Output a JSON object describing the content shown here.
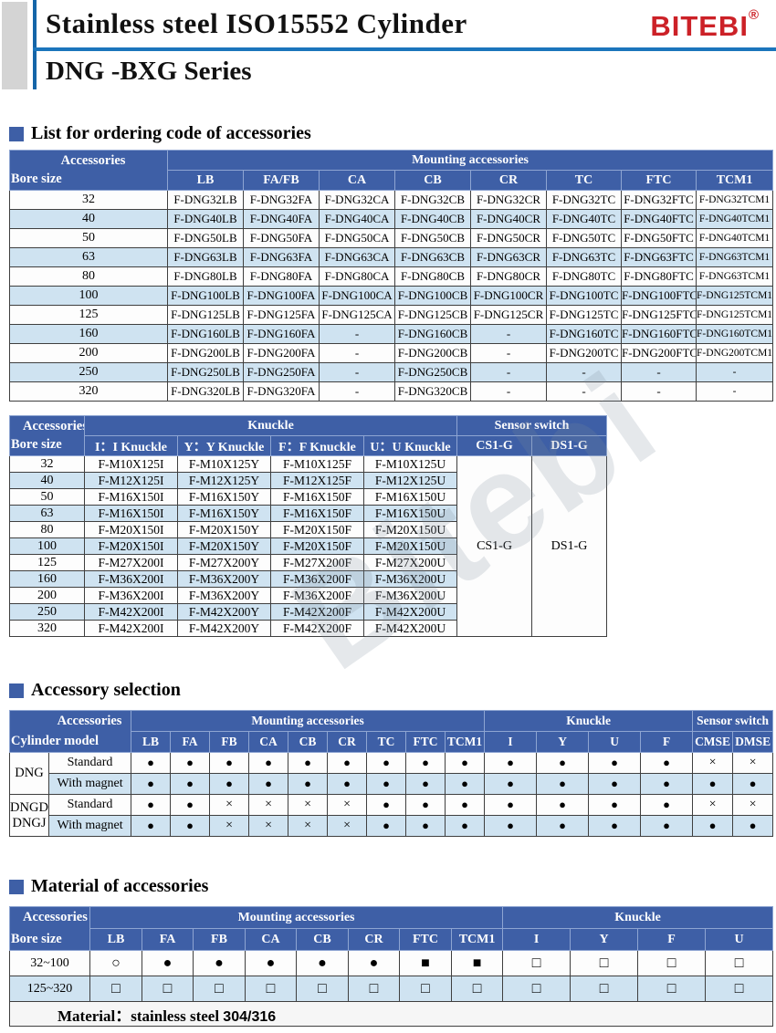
{
  "header": {
    "title": "Stainless steel ISO15552 Cylinder",
    "series": "DNG -BXG Series",
    "brand": "BITEBI",
    "brand_reg": "®"
  },
  "colors": {
    "header_blue": "#3e5fa6",
    "stripe_blue": "#cfe3f1",
    "rule_blue": "#1b75bc",
    "brand_red": "#cc2127"
  },
  "sections": {
    "ordering": "List for ordering code of accessories",
    "selection": "Accessory selection",
    "material": "Material of accessories"
  },
  "table1": {
    "corner": {
      "top": "Accessories",
      "bottom": "Bore size"
    },
    "group_header": "Mounting accessories",
    "columns": [
      "LB",
      "FA/FB",
      "CA",
      "CB",
      "CR",
      "TC",
      "FTC",
      "TCM1"
    ],
    "rows": [
      {
        "bore": "32",
        "cells": [
          "F-DNG32LB",
          "F-DNG32FA",
          "F-DNG32CA",
          "F-DNG32CB",
          "F-DNG32CR",
          "F-DNG32TC",
          "F-DNG32FTC",
          "F-DNG32TCM1"
        ]
      },
      {
        "bore": "40",
        "cells": [
          "F-DNG40LB",
          "F-DNG40FA",
          "F-DNG40CA",
          "F-DNG40CB",
          "F-DNG40CR",
          "F-DNG40TC",
          "F-DNG40FTC",
          "F-DNG40TCM1"
        ]
      },
      {
        "bore": "50",
        "cells": [
          "F-DNG50LB",
          "F-DNG50FA",
          "F-DNG50CA",
          "F-DNG50CB",
          "F-DNG50CR",
          "F-DNG50TC",
          "F-DNG50FTC",
          "F-DNG40TCM1"
        ]
      },
      {
        "bore": "63",
        "cells": [
          "F-DNG63LB",
          "F-DNG63FA",
          "F-DNG63CA",
          "F-DNG63CB",
          "F-DNG63CR",
          "F-DNG63TC",
          "F-DNG63FTC",
          "F-DNG63TCM1"
        ]
      },
      {
        "bore": "80",
        "cells": [
          "F-DNG80LB",
          "F-DNG80FA",
          "F-DNG80CA",
          "F-DNG80CB",
          "F-DNG80CR",
          "F-DNG80TC",
          "F-DNG80FTC",
          "F-DNG63TCM1"
        ]
      },
      {
        "bore": "100",
        "cells": [
          "F-DNG100LB",
          "F-DNG100FA",
          "F-DNG100CA",
          "F-DNG100CB",
          "F-DNG100CR",
          "F-DNG100TC",
          "F-DNG100FTC",
          "F-DNG125TCM1"
        ]
      },
      {
        "bore": "125",
        "cells": [
          "F-DNG125LB",
          "F-DNG125FA",
          "F-DNG125CA",
          "F-DNG125CB",
          "F-DNG125CR",
          "F-DNG125TC",
          "F-DNG125FTC",
          "F-DNG125TCM1"
        ]
      },
      {
        "bore": "160",
        "cells": [
          "F-DNG160LB",
          "F-DNG160FA",
          "-",
          "F-DNG160CB",
          "-",
          "F-DNG160TC",
          "F-DNG160FTC",
          "F-DNG160TCM1"
        ]
      },
      {
        "bore": "200",
        "cells": [
          "F-DNG200LB",
          "F-DNG200FA",
          "-",
          "F-DNG200CB",
          "-",
          "F-DNG200TC",
          "F-DNG200FTC",
          "F-DNG200TCM1"
        ]
      },
      {
        "bore": "250",
        "cells": [
          "F-DNG250LB",
          "F-DNG250FA",
          "-",
          "F-DNG250CB",
          "-",
          "-",
          "-",
          "-"
        ]
      },
      {
        "bore": "320",
        "cells": [
          "F-DNG320LB",
          "F-DNG320FA",
          "-",
          "F-DNG320CB",
          "-",
          "-",
          "-",
          "-"
        ]
      }
    ]
  },
  "table2": {
    "corner": {
      "top": "Accessories",
      "bottom": "Bore size"
    },
    "group_knuckle": "Knuckle",
    "group_sensor": "Sensor switch",
    "knuckle_columns": [
      "I：I Knuckle",
      "Y：Y Knuckle",
      "F：F Knuckle",
      "U：U Knuckle"
    ],
    "sensor_columns": [
      "CS1-G",
      "DS1-G"
    ],
    "sensor_values": [
      "CS1-G",
      "DS1-G"
    ],
    "rows": [
      {
        "bore": "32",
        "cells": [
          "F-M10X125I",
          "F-M10X125Y",
          "F-M10X125F",
          "F-M10X125U"
        ]
      },
      {
        "bore": "40",
        "cells": [
          "F-M12X125I",
          "F-M12X125Y",
          "F-M12X125F",
          "F-M12X125U"
        ]
      },
      {
        "bore": "50",
        "cells": [
          "F-M16X150I",
          "F-M16X150Y",
          "F-M16X150F",
          "F-M16X150U"
        ]
      },
      {
        "bore": "63",
        "cells": [
          "F-M16X150I",
          "F-M16X150Y",
          "F-M16X150F",
          "F-M16X150U"
        ]
      },
      {
        "bore": "80",
        "cells": [
          "F-M20X150I",
          "F-M20X150Y",
          "F-M20X150F",
          "F-M20X150U"
        ]
      },
      {
        "bore": "100",
        "cells": [
          "F-M20X150I",
          "F-M20X150Y",
          "F-M20X150F",
          "F-M20X150U"
        ]
      },
      {
        "bore": "125",
        "cells": [
          "F-M27X200I",
          "F-M27X200Y",
          "F-M27X200F",
          "F-M27X200U"
        ]
      },
      {
        "bore": "160",
        "cells": [
          "F-M36X200I",
          "F-M36X200Y",
          "F-M36X200F",
          "F-M36X200U"
        ]
      },
      {
        "bore": "200",
        "cells": [
          "F-M36X200I",
          "F-M36X200Y",
          "F-M36X200F",
          "F-M36X200U"
        ]
      },
      {
        "bore": "250",
        "cells": [
          "F-M42X200I",
          "F-M42X200Y",
          "F-M42X200F",
          "F-M42X200U"
        ]
      },
      {
        "bore": "320",
        "cells": [
          "F-M42X200I",
          "F-M42X200Y",
          "F-M42X200F",
          "F-M42X200U"
        ]
      }
    ]
  },
  "table3": {
    "corner": {
      "top": "Accessories",
      "bottom": "Cylinder model"
    },
    "group_mounting": "Mounting accessories",
    "group_knuckle": "Knuckle",
    "group_sensor": "Sensor switch",
    "mounting_columns": [
      "LB",
      "FA",
      "FB",
      "CA",
      "CB",
      "CR",
      "TC",
      "FTC",
      "TCM1"
    ],
    "knuckle_columns": [
      "I",
      "Y",
      "U",
      "F"
    ],
    "sensor_columns": [
      "CMSE",
      "DMSE"
    ],
    "models": [
      {
        "name": "DNG",
        "rows": [
          {
            "label": "Standard",
            "marks": [
              "●",
              "●",
              "●",
              "●",
              "●",
              "●",
              "●",
              "●",
              "●",
              "●",
              "●",
              "●",
              "●",
              "×",
              "×"
            ]
          },
          {
            "label": "With magnet",
            "marks": [
              "●",
              "●",
              "●",
              "●",
              "●",
              "●",
              "●",
              "●",
              "●",
              "●",
              "●",
              "●",
              "●",
              "●",
              "●"
            ]
          }
        ]
      },
      {
        "name": "DNGD DNGJ",
        "rows": [
          {
            "label": "Standard",
            "marks": [
              "●",
              "●",
              "×",
              "×",
              "×",
              "×",
              "●",
              "●",
              "●",
              "●",
              "●",
              "●",
              "●",
              "×",
              "×"
            ]
          },
          {
            "label": "With magnet",
            "marks": [
              "●",
              "●",
              "×",
              "×",
              "×",
              "×",
              "●",
              "●",
              "●",
              "●",
              "●",
              "●",
              "●",
              "●",
              "●"
            ]
          }
        ]
      }
    ]
  },
  "table4": {
    "corner": {
      "top": "Accessories",
      "bottom": "Bore size"
    },
    "group_mounting": "Mounting accessories",
    "group_knuckle": "Knuckle",
    "mounting_columns": [
      "LB",
      "FA",
      "FB",
      "CA",
      "CB",
      "CR",
      "FTC",
      "TCM1"
    ],
    "knuckle_columns": [
      "I",
      "Y",
      "F",
      "U"
    ],
    "rows": [
      {
        "bore": "32~100",
        "marks": [
          "○",
          "●",
          "●",
          "●",
          "●",
          "●",
          "■",
          "■",
          "□",
          "□",
          "□",
          "□"
        ]
      },
      {
        "bore": "125~320",
        "marks": [
          "□",
          "□",
          "□",
          "□",
          "□",
          "□",
          "□",
          "□",
          "□",
          "□",
          "□",
          "□"
        ]
      }
    ],
    "footer_label": "Material：stainless steel ",
    "footer_value": "304/316"
  },
  "watermark": "Bitebi"
}
